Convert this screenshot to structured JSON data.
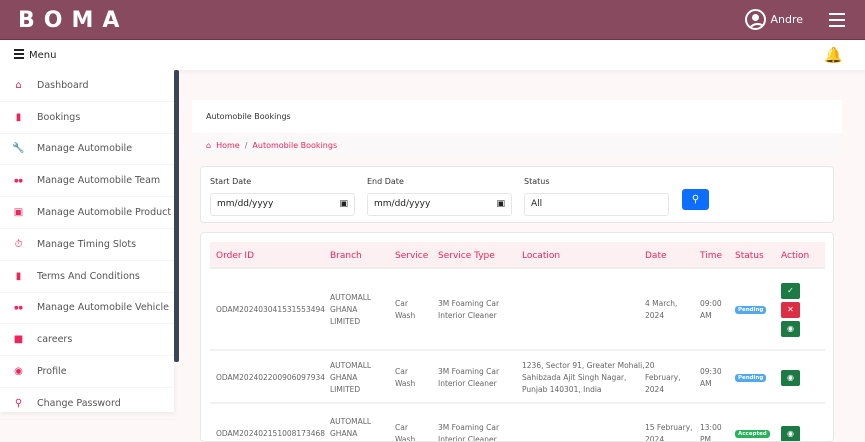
{
  "header": {
    "logo": "BOMA",
    "user": "Andre"
  },
  "menubar": {
    "menu_label": "Menu"
  },
  "sidebar": {
    "items": [
      {
        "label": "Dashboard",
        "icon": "home-icon"
      },
      {
        "label": "Bookings",
        "icon": "book-icon"
      },
      {
        "label": "Manage Automobile",
        "icon": "wrench-icon"
      },
      {
        "label": "Manage Automobile Team",
        "icon": "people-icon"
      },
      {
        "label": "Manage Automobile Product",
        "icon": "product-icon"
      },
      {
        "label": "Manage Timing Slots",
        "icon": "timer-icon"
      },
      {
        "label": "Terms And Conditions",
        "icon": "document-icon"
      },
      {
        "label": "Manage Automobile Vehicle",
        "icon": "people-icon"
      },
      {
        "label": "careers",
        "icon": "briefcase-icon"
      },
      {
        "label": "Profile",
        "icon": "profile-icon"
      },
      {
        "label": "Change Password",
        "icon": "key-icon"
      }
    ]
  },
  "page": {
    "title": "Automobile Bookings",
    "breadcrumb": [
      "Home",
      "Automobile Bookings"
    ]
  },
  "filters": {
    "start_label": "Start Date",
    "start_value": "mm/dd/yyyy",
    "end_label": "End Date",
    "end_value": "mm/dd/yyyy",
    "status_label": "Status",
    "status_value": "All"
  },
  "table": {
    "headers": [
      "Order ID",
      "Branch",
      "Service",
      "Service Type",
      "Location",
      "Date",
      "Time",
      "Status",
      "Action"
    ],
    "rows": [
      {
        "order_id": "ODAM202403041531553494",
        "branch": [
          "AUTOMALL",
          "GHANA",
          "LIMITED"
        ],
        "service": [
          "Car",
          "Wash"
        ],
        "service_type": [
          "3M Foaming Car",
          "Interior Cleaner"
        ],
        "location": [],
        "date": [
          "4 March,",
          "2024"
        ],
        "time": [
          "09:00",
          "AM"
        ],
        "status": "Pending"
      },
      {
        "order_id": "ODAM202402200906097934",
        "branch": [
          "AUTOMALL",
          "GHANA",
          "LIMITED"
        ],
        "service": [
          "Car",
          "Wash"
        ],
        "service_type": [
          "3M Foaming Car",
          "Interior Cleaner"
        ],
        "location": [
          "1236, Sector 91, Greater Mohali,",
          "Sahibzada Ajit Singh Nagar,",
          "Punjab 140301, India"
        ],
        "date": [
          "20",
          "February,",
          "2024"
        ],
        "time": [
          "09:30",
          "AM"
        ],
        "status": "Pending"
      },
      {
        "order_id": "ODAM202402151008173468",
        "branch": [
          "AUTOMALL",
          "GHANA",
          "LIMITED"
        ],
        "service": [
          "Car",
          "Wash"
        ],
        "service_type": [
          "3M Foaming Car",
          "Interior Cleaner"
        ],
        "location": [],
        "date": [
          "15 February,",
          "2024"
        ],
        "time": [
          "13:00",
          "PM"
        ],
        "status": "Accepted"
      }
    ]
  },
  "colors": {
    "header": "#874a5f",
    "accent": "#f0245a",
    "pending": "#53a8ef",
    "accepted": "#27b35a",
    "approve": "#1d7a45",
    "reject": "#dc2f45",
    "search": "#0d6efd"
  }
}
